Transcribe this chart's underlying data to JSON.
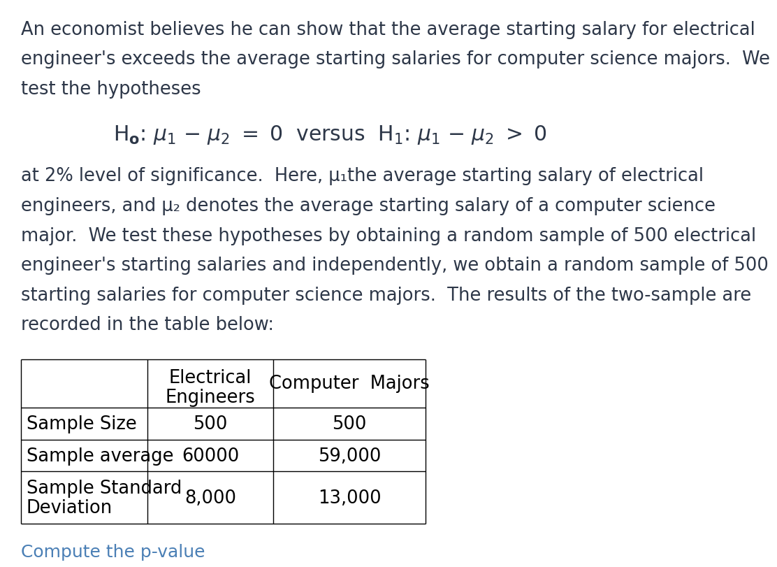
{
  "background_color": "#ffffff",
  "text_color": "#2d3748",
  "paragraph1_lines": [
    "An economist believes he can show that the average starting salary for electrical",
    "engineer's exceeds the average starting salaries for computer science majors.  We",
    "test the hypotheses"
  ],
  "paragraph2_lines": [
    "at 2% level of significance.  Here, μ₁the average starting salary of electrical",
    "engineers, and μ₂ denotes the average starting salary of a computer science",
    "major.  We test these hypotheses by obtaining a random sample of 500 electrical",
    "engineer's starting salaries and independently, we obtain a random sample of 500",
    "starting salaries for computer science majors.  The results of the two-sample are",
    "recorded in the table below:"
  ],
  "table_col1_header": "",
  "table_col2_header_line1": "Electrical",
  "table_col2_header_line2": "Engineers",
  "table_col3_header": "Computer  Majors",
  "table_rows": [
    [
      "Sample Size",
      "500",
      "500"
    ],
    [
      "Sample average",
      "60000",
      "59,000"
    ],
    [
      "Sample Standard\nDeviation",
      "8,000",
      "13,000"
    ]
  ],
  "footer_text": "Compute the p-value",
  "footer_color": "#4a7fb5",
  "main_fontsize": 18.5,
  "table_fontsize": 18.5,
  "footer_fontsize": 18
}
